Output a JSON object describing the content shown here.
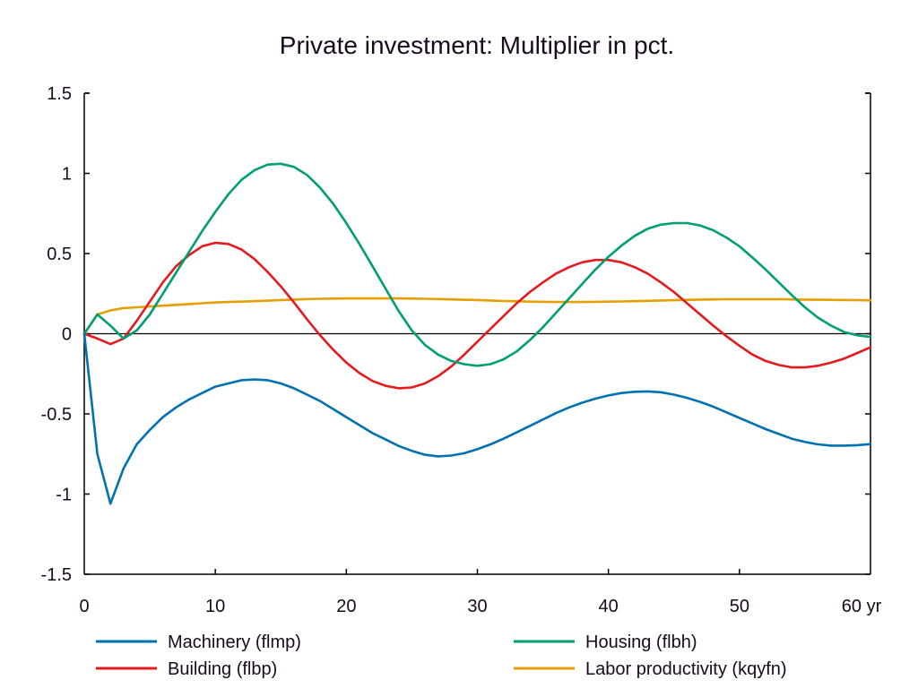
{
  "chart_data": {
    "type": "line",
    "title": "Private investment: Multiplier in pct.",
    "xlabel": "",
    "ylabel": "",
    "x_unit_suffix": "yr",
    "xlim": [
      0,
      60
    ],
    "ylim": [
      -1.5,
      1.5
    ],
    "grid": false,
    "legend_position": "bottom",
    "x_ticks": [
      0,
      10,
      20,
      30,
      40,
      50,
      60
    ],
    "x_tick_labels": [
      "0",
      "10",
      "20",
      "30",
      "40",
      "50",
      "60 yr"
    ],
    "y_ticks": [
      1.5,
      1,
      0.5,
      0,
      -0.5,
      -1,
      -1.5
    ],
    "y_tick_labels": [
      "1.5",
      "1",
      "0.5",
      "0",
      "-0.5",
      "-1",
      "-1.5"
    ],
    "x": [
      0,
      1,
      2,
      3,
      4,
      5,
      6,
      7,
      8,
      9,
      10,
      11,
      12,
      13,
      14,
      15,
      16,
      17,
      18,
      19,
      20,
      21,
      22,
      23,
      24,
      25,
      26,
      27,
      28,
      29,
      30,
      31,
      32,
      33,
      34,
      35,
      36,
      37,
      38,
      39,
      40,
      41,
      42,
      43,
      44,
      45,
      46,
      47,
      48,
      49,
      50,
      51,
      52,
      53,
      54,
      55,
      56,
      57,
      58,
      59,
      60
    ],
    "series": [
      {
        "name": "Machinery (flmp)",
        "color": "#0072b2",
        "values": [
          0,
          -0.75,
          -1.06,
          -0.84,
          -0.69,
          -0.6,
          -0.52,
          -0.46,
          -0.41,
          -0.37,
          -0.33,
          -0.31,
          -0.29,
          -0.285,
          -0.29,
          -0.31,
          -0.34,
          -0.38,
          -0.42,
          -0.47,
          -0.52,
          -0.57,
          -0.62,
          -0.66,
          -0.7,
          -0.73,
          -0.755,
          -0.765,
          -0.76,
          -0.745,
          -0.72,
          -0.69,
          -0.655,
          -0.615,
          -0.575,
          -0.535,
          -0.495,
          -0.46,
          -0.43,
          -0.405,
          -0.385,
          -0.37,
          -0.362,
          -0.36,
          -0.365,
          -0.38,
          -0.4,
          -0.425,
          -0.455,
          -0.49,
          -0.525,
          -0.56,
          -0.595,
          -0.625,
          -0.655,
          -0.675,
          -0.69,
          -0.698,
          -0.698,
          -0.695,
          -0.688
        ]
      },
      {
        "name": "Building (flbp)",
        "color": "#e41a1c",
        "values": [
          0,
          -0.03,
          -0.065,
          -0.03,
          0.08,
          0.2,
          0.32,
          0.42,
          0.49,
          0.545,
          0.567,
          0.56,
          0.525,
          0.465,
          0.385,
          0.295,
          0.195,
          0.09,
          -0.01,
          -0.1,
          -0.18,
          -0.245,
          -0.295,
          -0.325,
          -0.34,
          -0.335,
          -0.31,
          -0.265,
          -0.205,
          -0.13,
          -0.05,
          0.03,
          0.11,
          0.19,
          0.26,
          0.32,
          0.375,
          0.415,
          0.445,
          0.46,
          0.46,
          0.445,
          0.415,
          0.375,
          0.32,
          0.26,
          0.19,
          0.12,
          0.05,
          -0.015,
          -0.075,
          -0.13,
          -0.17,
          -0.195,
          -0.21,
          -0.21,
          -0.2,
          -0.18,
          -0.155,
          -0.12,
          -0.085
        ]
      },
      {
        "name": "Housing (flbh)",
        "color": "#009e73",
        "values": [
          0,
          0.12,
          0.05,
          -0.03,
          0.02,
          0.12,
          0.25,
          0.38,
          0.51,
          0.64,
          0.76,
          0.87,
          0.96,
          1.02,
          1.055,
          1.06,
          1.04,
          0.99,
          0.91,
          0.81,
          0.69,
          0.56,
          0.42,
          0.28,
          0.14,
          0.02,
          -0.07,
          -0.13,
          -0.17,
          -0.19,
          -0.2,
          -0.19,
          -0.16,
          -0.11,
          -0.04,
          0.04,
          0.13,
          0.22,
          0.31,
          0.4,
          0.48,
          0.55,
          0.61,
          0.655,
          0.68,
          0.69,
          0.69,
          0.675,
          0.645,
          0.6,
          0.545,
          0.475,
          0.4,
          0.32,
          0.24,
          0.165,
          0.1,
          0.05,
          0.01,
          -0.01,
          -0.02
        ]
      },
      {
        "name": "Labor productivity (kqyfn)",
        "color": "#e69f00",
        "values": [
          0,
          0.12,
          0.145,
          0.16,
          0.165,
          0.17,
          0.175,
          0.18,
          0.185,
          0.19,
          0.195,
          0.198,
          0.2,
          0.203,
          0.206,
          0.21,
          0.213,
          0.216,
          0.218,
          0.219,
          0.22,
          0.22,
          0.22,
          0.22,
          0.22,
          0.219,
          0.218,
          0.216,
          0.214,
          0.212,
          0.21,
          0.207,
          0.204,
          0.202,
          0.2,
          0.199,
          0.198,
          0.198,
          0.198,
          0.199,
          0.2,
          0.201,
          0.203,
          0.205,
          0.207,
          0.209,
          0.211,
          0.213,
          0.214,
          0.215,
          0.215,
          0.215,
          0.215,
          0.215,
          0.214,
          0.213,
          0.212,
          0.211,
          0.21,
          0.21,
          0.208
        ]
      }
    ]
  }
}
